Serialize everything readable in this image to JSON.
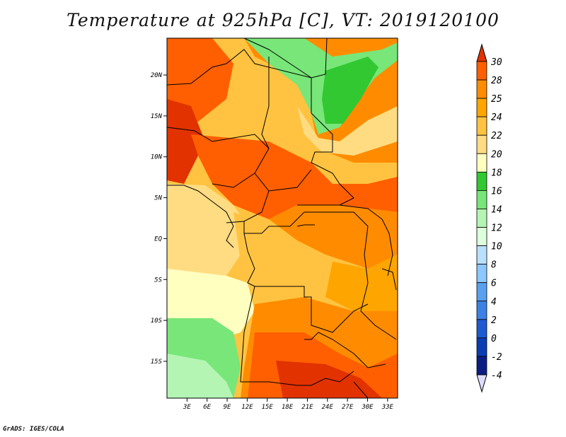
{
  "title": "Temperature at 925hPa [C], VT: 2019120100",
  "footer": "GrADS: IGES/COLA",
  "map": {
    "lon_range": [
      0,
      34.5
    ],
    "lat_range": [
      -19.5,
      24.5
    ],
    "lat_ticks": [
      {
        "value": 20,
        "label": "20N"
      },
      {
        "value": 15,
        "label": "15N"
      },
      {
        "value": 10,
        "label": "10N"
      },
      {
        "value": 5,
        "label": "5N"
      },
      {
        "value": 0,
        "label": "EQ"
      },
      {
        "value": -5,
        "label": "5S"
      },
      {
        "value": -10,
        "label": "10S"
      },
      {
        "value": -15,
        "label": "15S"
      }
    ],
    "lon_ticks": [
      {
        "value": 3,
        "label": "3E"
      },
      {
        "value": 6,
        "label": "6E"
      },
      {
        "value": 9,
        "label": "9E"
      },
      {
        "value": 12,
        "label": "12E"
      },
      {
        "value": 15,
        "label": "15E"
      },
      {
        "value": 18,
        "label": "18E"
      },
      {
        "value": 21,
        "label": "21E"
      },
      {
        "value": 24,
        "label": "24E"
      },
      {
        "value": 27,
        "label": "27E"
      },
      {
        "value": 30,
        "label": "30E"
      },
      {
        "value": 33,
        "label": "33E"
      }
    ]
  },
  "colorbar": {
    "levels": [
      "30",
      "28",
      "25",
      "24",
      "22",
      "20",
      "18",
      "16",
      "14",
      "12",
      "10",
      "8",
      "6",
      "4",
      "2",
      "0",
      "-2",
      "-4"
    ],
    "colors": [
      "#e13200",
      "#ff5f00",
      "#ff8c00",
      "#ffa500",
      "#ffc341",
      "#ffdc82",
      "#ffffc0",
      "#32c832",
      "#78e678",
      "#b4f5b4",
      "#dcffdc",
      "#bae0ff",
      "#8cc8ff",
      "#5aa0f0",
      "#3c82e6",
      "#1e5ad2",
      "#0a3cb4",
      "#0a1e82",
      "#080a50"
    ],
    "top_arrow_color": "#e13200",
    "bottom_arrow_color": "#dcdcff"
  },
  "field": {
    "hot": "#e13200",
    "warm": "#ff5f00",
    "orange": "#ff8c00",
    "amber": "#ffa500",
    "light_orange": "#ffc341",
    "pale": "#ffdc82",
    "cream": "#ffffc0",
    "green": "#32c832",
    "light_green": "#78e678",
    "pale_green": "#b4f5b4"
  }
}
